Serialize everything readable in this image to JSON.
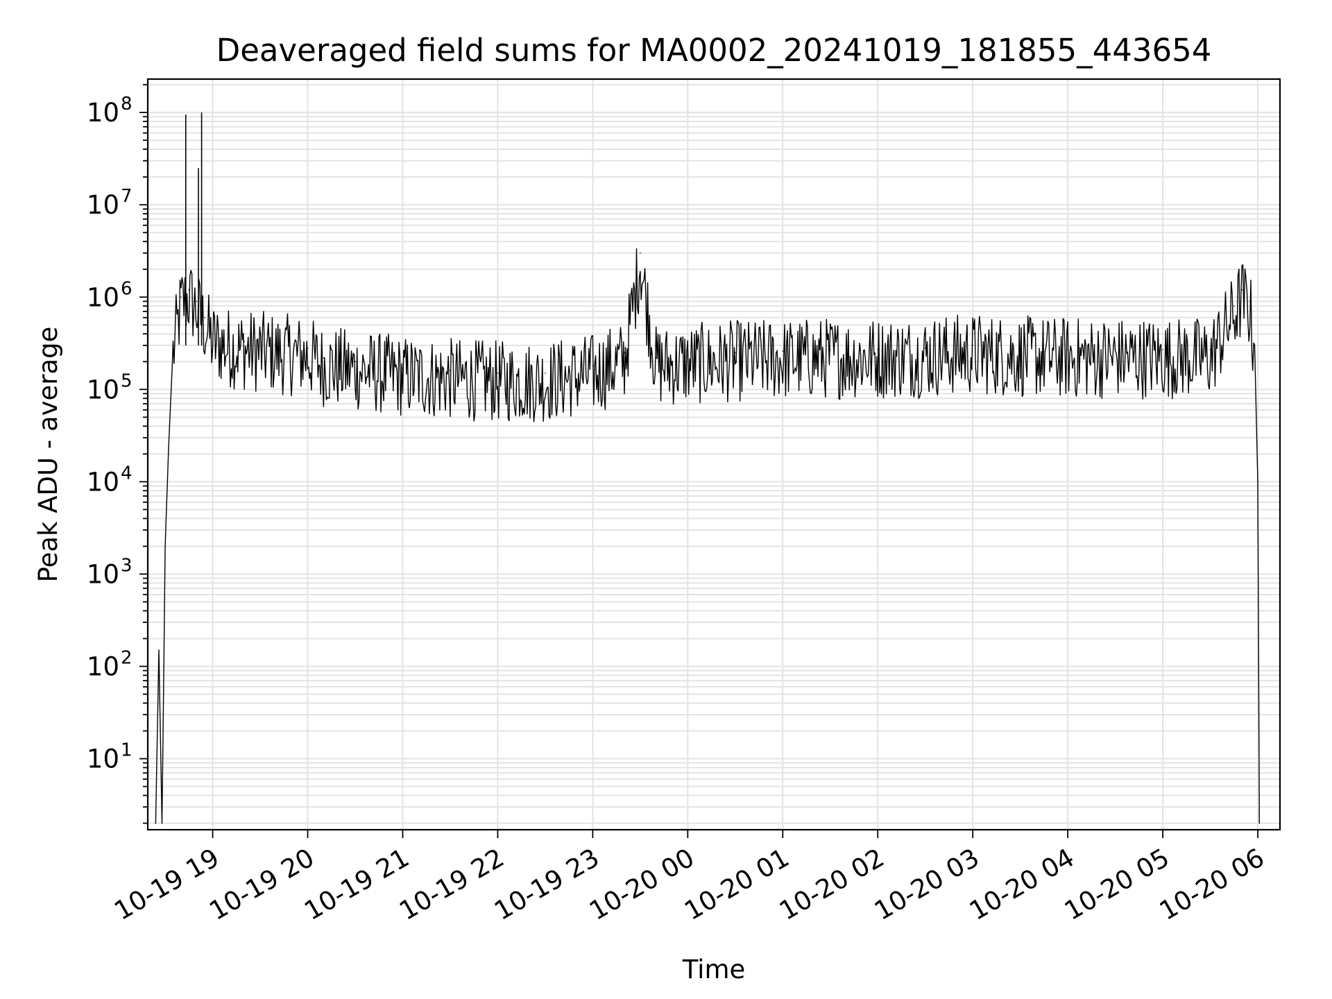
{
  "chart_data": {
    "type": "line",
    "title": "Deaveraged field sums for MA0002_20241019_181855_443654",
    "xlabel": "Time",
    "ylabel": "Peak ADU - average",
    "yscale": "log",
    "ylim": [
      1.7,
      230000000.0
    ],
    "xlim": [
      "2024-10-19 18:19",
      "2024-10-20 06:14"
    ],
    "grid": true,
    "x_ticks": [
      "10-19 19",
      "10-19 20",
      "10-19 21",
      "10-19 22",
      "10-19 23",
      "10-20 00",
      "10-20 01",
      "10-20 02",
      "10-20 03",
      "10-20 04",
      "10-20 05",
      "10-20 06"
    ],
    "y_ticks": [
      {
        "base": "10",
        "exp": "1"
      },
      {
        "base": "10",
        "exp": "2"
      },
      {
        "base": "10",
        "exp": "3"
      },
      {
        "base": "10",
        "exp": "4"
      },
      {
        "base": "10",
        "exp": "5"
      },
      {
        "base": "10",
        "exp": "6"
      },
      {
        "base": "10",
        "exp": "7"
      },
      {
        "base": "10",
        "exp": "8"
      }
    ],
    "series": [
      {
        "color": "#000000",
        "x": [
          "2024-10-19 18:24",
          "2024-10-19 18:26",
          "2024-10-19 18:28",
          "2024-10-19 18:30",
          "2024-10-19 18:32",
          "2024-10-19 18:35",
          "2024-10-19 18:40",
          "2024-10-19 18:45",
          "2024-10-19 18:50",
          "2024-10-19 18:55",
          "2024-10-19 19:00",
          "2024-10-19 19:10",
          "2024-10-19 19:20",
          "2024-10-19 19:40",
          "2024-10-19 20:00",
          "2024-10-19 20:10",
          "2024-10-19 20:30",
          "2024-10-19 21:00",
          "2024-10-19 21:30",
          "2024-10-19 22:00",
          "2024-10-19 22:30",
          "2024-10-19 23:00",
          "2024-10-19 23:20",
          "2024-10-19 23:30",
          "2024-10-19 23:40",
          "2024-10-20 00:00",
          "2024-10-20 00:30",
          "2024-10-20 01:00",
          "2024-10-20 01:30",
          "2024-10-20 02:00",
          "2024-10-20 02:30",
          "2024-10-20 03:00",
          "2024-10-20 03:30",
          "2024-10-20 04:00",
          "2024-10-20 04:30",
          "2024-10-20 05:00",
          "2024-10-20 05:30",
          "2024-10-20 05:45",
          "2024-10-20 05:50",
          "2024-10-20 05:55",
          "2024-10-20 05:58",
          "2024-10-20 06:00",
          "2024-10-20 06:01"
        ],
        "values": [
          2,
          150,
          2,
          2000,
          20000,
          300000,
          1000000,
          1200000,
          900000,
          600000,
          400000,
          350000,
          330000,
          300000,
          280000,
          220000,
          200000,
          170000,
          160000,
          150000,
          150000,
          180000,
          250000,
          3000000,
          220000,
          230000,
          250000,
          260000,
          270000,
          270000,
          280000,
          300000,
          280000,
          270000,
          270000,
          270000,
          270000,
          800000,
          1200000,
          900000,
          300000,
          10000,
          2
        ]
      }
    ]
  }
}
